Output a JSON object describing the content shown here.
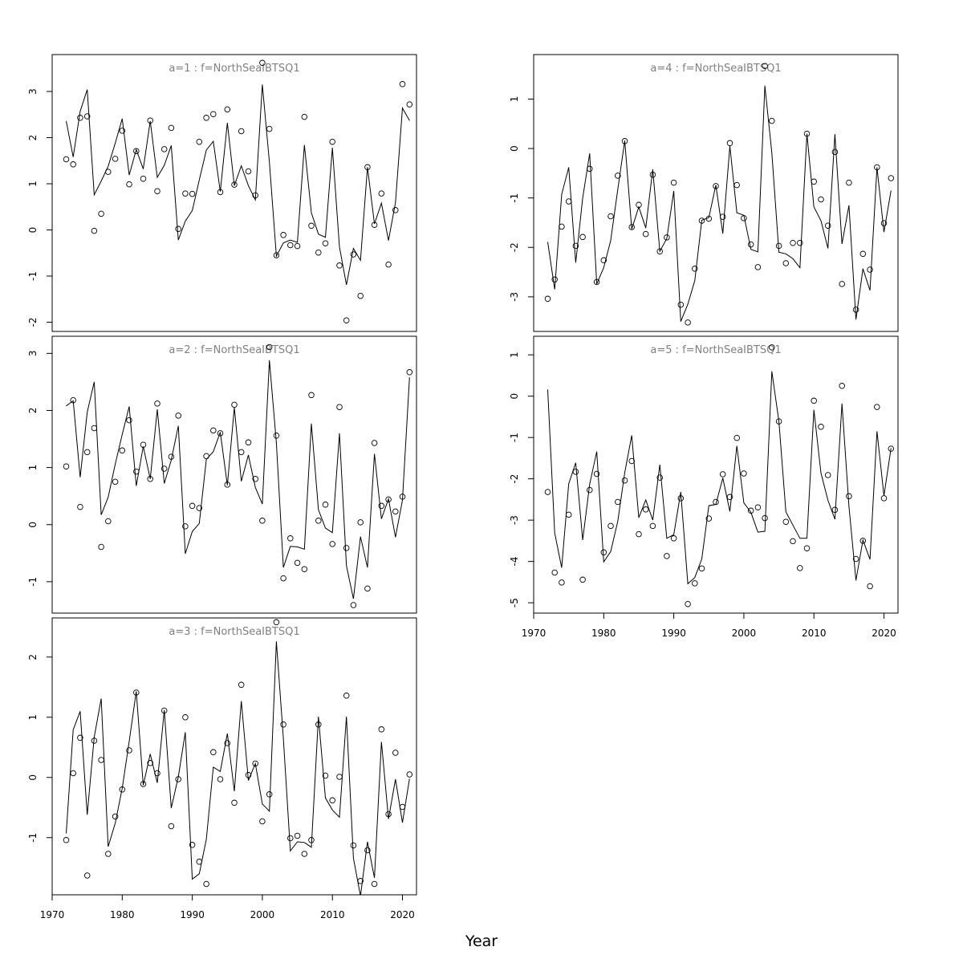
{
  "figure": {
    "xlabel": "Year"
  },
  "chart_data": [
    {
      "type": "line",
      "title": "a=1 : f=NorthSeaIBTSQ1",
      "xlim": [
        1970,
        2022
      ],
      "ylim": [
        -2.2,
        3.8
      ],
      "xticks": [
        1970,
        1980,
        1990,
        2000,
        2010,
        2020
      ],
      "yticks": [
        -2,
        -1,
        0,
        1,
        2,
        3
      ],
      "x": [
        1972,
        1973,
        1974,
        1975,
        1976,
        1977,
        1978,
        1979,
        1980,
        1981,
        1982,
        1983,
        1984,
        1985,
        1986,
        1987,
        1988,
        1989,
        1990,
        1991,
        1992,
        1993,
        1994,
        1995,
        1996,
        1997,
        1998,
        1999,
        2000,
        2001,
        2002,
        2003,
        2004,
        2005,
        2006,
        2007,
        2008,
        2009,
        2010,
        2011,
        2012,
        2013,
        2014,
        2015,
        2016,
        2017,
        2018,
        2019,
        2020,
        2021
      ],
      "series": [
        {
          "type": "scatter",
          "values": [
            1.53,
            1.42,
            2.43,
            2.46,
            -0.02,
            0.35,
            1.26,
            1.54,
            2.15,
            0.99,
            1.71,
            1.11,
            2.37,
            0.84,
            1.75,
            2.21,
            0.02,
            0.79,
            0.78,
            1.91,
            2.43,
            2.51,
            0.82,
            2.61,
            0.98,
            2.14,
            1.27,
            0.75,
            3.62,
            2.19,
            -0.55,
            -0.11,
            -0.33,
            -0.35,
            2.45,
            0.09,
            -0.49,
            -0.29,
            1.91,
            -0.77,
            -1.96,
            -0.53,
            -1.43,
            1.36,
            0.11,
            0.79,
            -0.75,
            0.43,
            3.16,
            2.72
          ]
        },
        {
          "type": "line",
          "values": [
            2.36,
            1.58,
            2.57,
            3.04,
            0.76,
            1.06,
            1.38,
            1.88,
            2.41,
            1.19,
            1.74,
            1.32,
            2.36,
            1.14,
            1.4,
            1.83,
            -0.22,
            0.19,
            0.42,
            1.08,
            1.73,
            1.92,
            0.83,
            2.32,
            0.96,
            1.39,
            0.96,
            0.65,
            3.15,
            1.47,
            -0.57,
            -0.28,
            -0.22,
            -0.27,
            1.84,
            0.37,
            -0.09,
            -0.16,
            1.78,
            -0.37,
            -1.19,
            -0.4,
            -0.66,
            1.36,
            0.13,
            0.58,
            -0.23,
            0.59,
            2.64,
            2.37
          ]
        }
      ]
    },
    {
      "type": "line",
      "title": "a=2 : f=NorthSeaIBTSQ1",
      "xlim": [
        1970,
        2022
      ],
      "ylim": [
        -1.55,
        3.3
      ],
      "xticks": [
        1970,
        1980,
        1990,
        2000,
        2010,
        2020
      ],
      "yticks": [
        -1,
        0,
        1,
        2,
        3
      ],
      "x": [
        1972,
        1973,
        1974,
        1975,
        1976,
        1977,
        1978,
        1979,
        1980,
        1981,
        1982,
        1983,
        1984,
        1985,
        1986,
        1987,
        1988,
        1989,
        1990,
        1991,
        1992,
        1993,
        1994,
        1995,
        1996,
        1997,
        1998,
        1999,
        2000,
        2001,
        2002,
        2003,
        2004,
        2005,
        2006,
        2007,
        2008,
        2009,
        2010,
        2011,
        2012,
        2013,
        2014,
        2015,
        2016,
        2017,
        2018,
        2019,
        2020,
        2021
      ],
      "series": [
        {
          "type": "scatter",
          "values": [
            1.02,
            2.18,
            0.31,
            1.27,
            1.69,
            -0.39,
            0.06,
            0.75,
            1.3,
            1.83,
            0.93,
            1.4,
            0.8,
            2.12,
            0.98,
            1.19,
            1.91,
            -0.03,
            0.33,
            0.29,
            1.2,
            1.65,
            1.6,
            0.7,
            2.1,
            1.27,
            1.44,
            0.8,
            0.07,
            3.11,
            1.56,
            -0.94,
            -0.24,
            -0.67,
            -0.78,
            2.27,
            0.07,
            0.35,
            -0.34,
            2.06,
            -0.41,
            -1.41,
            0.04,
            -1.12,
            1.43,
            0.33,
            0.44,
            0.23,
            0.49,
            2.67
          ]
        },
        {
          "type": "line",
          "values": [
            2.08,
            2.17,
            0.83,
            1.97,
            2.5,
            0.17,
            0.48,
            1.06,
            1.58,
            2.07,
            0.68,
            1.37,
            0.8,
            2.02,
            0.72,
            1.13,
            1.73,
            -0.51,
            -0.12,
            0.02,
            1.14,
            1.28,
            1.62,
            0.69,
            2.05,
            0.76,
            1.22,
            0.65,
            0.36,
            2.88,
            1.43,
            -0.75,
            -0.38,
            -0.39,
            -0.43,
            1.77,
            0.26,
            -0.06,
            -0.14,
            1.6,
            -0.72,
            -1.3,
            -0.21,
            -0.75,
            1.24,
            0.1,
            0.45,
            -0.22,
            0.43,
            2.58
          ]
        }
      ]
    },
    {
      "type": "line",
      "title": "a=3 : f=NorthSeaIBTSQ1",
      "xlim": [
        1970,
        2022
      ],
      "ylim": [
        -1.95,
        2.65
      ],
      "xticks": [
        1970,
        1980,
        1990,
        2000,
        2010,
        2020
      ],
      "yticks": [
        -1,
        0,
        1,
        2
      ],
      "x": [
        1972,
        1973,
        1974,
        1975,
        1976,
        1977,
        1978,
        1979,
        1980,
        1981,
        1982,
        1983,
        1984,
        1985,
        1986,
        1987,
        1988,
        1989,
        1990,
        1991,
        1992,
        1993,
        1994,
        1995,
        1996,
        1997,
        1998,
        1999,
        2000,
        2001,
        2002,
        2003,
        2004,
        2005,
        2006,
        2007,
        2008,
        2009,
        2010,
        2011,
        2012,
        2013,
        2014,
        2015,
        2016,
        2017,
        2018,
        2019,
        2020,
        2021
      ],
      "series": [
        {
          "type": "scatter",
          "values": [
            -1.04,
            0.07,
            0.66,
            -1.63,
            0.61,
            0.29,
            -1.27,
            -0.65,
            -0.2,
            0.45,
            1.41,
            -0.11,
            0.24,
            0.07,
            1.11,
            -0.81,
            -0.03,
            1.0,
            -1.12,
            -1.4,
            -1.77,
            0.42,
            -0.03,
            0.57,
            -0.42,
            1.54,
            0.04,
            0.23,
            -0.73,
            -0.28,
            2.58,
            0.88,
            -1.01,
            -0.97,
            -1.27,
            -1.04,
            0.88,
            0.03,
            -0.38,
            0.01,
            1.36,
            -1.13,
            -1.72,
            -1.21,
            -1.77,
            0.8,
            -0.61,
            0.41,
            -0.49,
            0.05
          ]
        },
        {
          "type": "line",
          "values": [
            -0.93,
            0.79,
            1.1,
            -0.62,
            0.67,
            1.31,
            -1.15,
            -0.76,
            -0.18,
            0.6,
            1.43,
            -0.13,
            0.39,
            -0.09,
            1.12,
            -0.51,
            0.01,
            0.75,
            -1.69,
            -1.6,
            -1.03,
            0.17,
            0.1,
            0.73,
            -0.23,
            1.27,
            -0.05,
            0.23,
            -0.44,
            -0.56,
            2.26,
            0.65,
            -1.22,
            -1.07,
            -1.08,
            -1.16,
            1.01,
            -0.34,
            -0.54,
            -0.66,
            1.01,
            -1.34,
            -1.97,
            -1.07,
            -1.67,
            0.59,
            -0.69,
            -0.03,
            -0.75,
            -0.02
          ]
        }
      ]
    },
    {
      "type": "line",
      "title": "a=4 : f=NorthSeaIBTSQ1",
      "xlim": [
        1970,
        2022
      ],
      "ylim": [
        -3.7,
        1.9
      ],
      "xticks": [
        1970,
        1980,
        1990,
        2000,
        2010,
        2020
      ],
      "yticks": [
        -3,
        -2,
        -1,
        0,
        1
      ],
      "x": [
        1972,
        1973,
        1974,
        1975,
        1976,
        1977,
        1978,
        1979,
        1980,
        1981,
        1982,
        1983,
        1984,
        1985,
        1986,
        1987,
        1988,
        1989,
        1990,
        1991,
        1992,
        1993,
        1994,
        1995,
        1996,
        1997,
        1998,
        1999,
        2000,
        2001,
        2002,
        2003,
        2004,
        2005,
        2006,
        2007,
        2008,
        2009,
        2010,
        2011,
        2012,
        2013,
        2014,
        2015,
        2016,
        2017,
        2018,
        2019,
        2020,
        2021
      ],
      "series": [
        {
          "type": "scatter",
          "values": [
            -3.04,
            -2.65,
            -1.58,
            -1.07,
            -1.97,
            -1.79,
            -0.41,
            -2.7,
            -2.26,
            -1.37,
            -0.55,
            0.15,
            -1.59,
            -1.14,
            -1.73,
            -0.53,
            -2.08,
            -1.8,
            -0.69,
            -3.16,
            -3.52,
            -2.43,
            -1.46,
            -1.42,
            -0.76,
            -1.38,
            0.11,
            -0.74,
            -1.41,
            -1.94,
            -2.4,
            1.67,
            0.56,
            -1.97,
            -2.32,
            -1.91,
            -1.91,
            0.3,
            -0.67,
            -1.03,
            -1.56,
            -0.07,
            -2.74,
            -0.69,
            -3.26,
            -2.13,
            -2.45,
            -0.38,
            -1.51,
            -0.6
          ]
        },
        {
          "type": "line",
          "values": [
            -1.89,
            -2.85,
            -0.93,
            -0.38,
            -2.31,
            -1.0,
            -0.1,
            -2.74,
            -2.41,
            -1.86,
            -0.83,
            0.16,
            -1.63,
            -1.18,
            -1.61,
            -0.42,
            -2.08,
            -1.82,
            -0.86,
            -3.5,
            -3.15,
            -2.67,
            -1.45,
            -1.4,
            -0.74,
            -1.72,
            0.05,
            -1.3,
            -1.35,
            -2.04,
            -2.09,
            1.27,
            -0.09,
            -2.1,
            -2.13,
            -2.23,
            -2.41,
            0.3,
            -1.18,
            -1.46,
            -2.02,
            0.29,
            -1.93,
            -1.15,
            -3.46,
            -2.43,
            -2.87,
            -0.38,
            -1.69,
            -0.85
          ]
        }
      ]
    },
    {
      "type": "line",
      "title": "a=5 : f=NorthSeaIBTSQ1",
      "xlim": [
        1970,
        2022
      ],
      "ylim": [
        -5.25,
        1.45
      ],
      "xticks": [
        1970,
        1980,
        1990,
        2000,
        2010,
        2020
      ],
      "yticks": [
        -5,
        -4,
        -3,
        -2,
        -1,
        0,
        1
      ],
      "x": [
        1972,
        1973,
        1974,
        1975,
        1976,
        1977,
        1978,
        1979,
        1980,
        1981,
        1982,
        1983,
        1984,
        1985,
        1986,
        1987,
        1988,
        1989,
        1990,
        1991,
        1992,
        1993,
        1994,
        1995,
        1996,
        1997,
        1998,
        1999,
        2000,
        2001,
        2002,
        2003,
        2004,
        2005,
        2006,
        2007,
        2008,
        2009,
        2010,
        2011,
        2012,
        2013,
        2014,
        2015,
        2016,
        2017,
        2018,
        2019,
        2020,
        2021
      ],
      "series": [
        {
          "type": "scatter",
          "values": [
            -2.32,
            -4.27,
            -4.51,
            -2.87,
            -1.83,
            -4.44,
            -2.27,
            -1.88,
            -3.78,
            -3.14,
            -2.56,
            -2.04,
            -1.57,
            -3.34,
            -2.74,
            -3.14,
            -1.97,
            -3.87,
            -3.44,
            -2.47,
            -5.03,
            -4.53,
            -4.17,
            -2.96,
            -2.56,
            -1.89,
            -2.44,
            -1.01,
            -1.87,
            -2.77,
            -2.69,
            -2.95,
            1.18,
            -0.61,
            -3.04,
            -3.51,
            -4.16,
            -3.68,
            -0.11,
            -0.74,
            -1.91,
            -2.75,
            0.25,
            -2.42,
            -3.94,
            -3.5,
            -4.6,
            -0.26,
            -2.47,
            -1.27
          ]
        },
        {
          "type": "line",
          "values": [
            0.16,
            -3.31,
            -4.15,
            -2.12,
            -1.61,
            -3.48,
            -2.13,
            -1.34,
            -4.01,
            -3.76,
            -3.03,
            -1.85,
            -0.95,
            -2.94,
            -2.51,
            -3.0,
            -1.66,
            -3.44,
            -3.35,
            -2.32,
            -4.54,
            -4.39,
            -3.94,
            -2.65,
            -2.62,
            -1.98,
            -2.79,
            -1.2,
            -2.58,
            -2.81,
            -3.29,
            -3.27,
            0.6,
            -0.61,
            -2.8,
            -3.12,
            -3.44,
            -3.44,
            -0.33,
            -1.86,
            -2.52,
            -2.98,
            -0.18,
            -2.67,
            -4.46,
            -3.48,
            -3.95,
            -0.85,
            -2.41,
            -1.26
          ]
        }
      ]
    }
  ]
}
